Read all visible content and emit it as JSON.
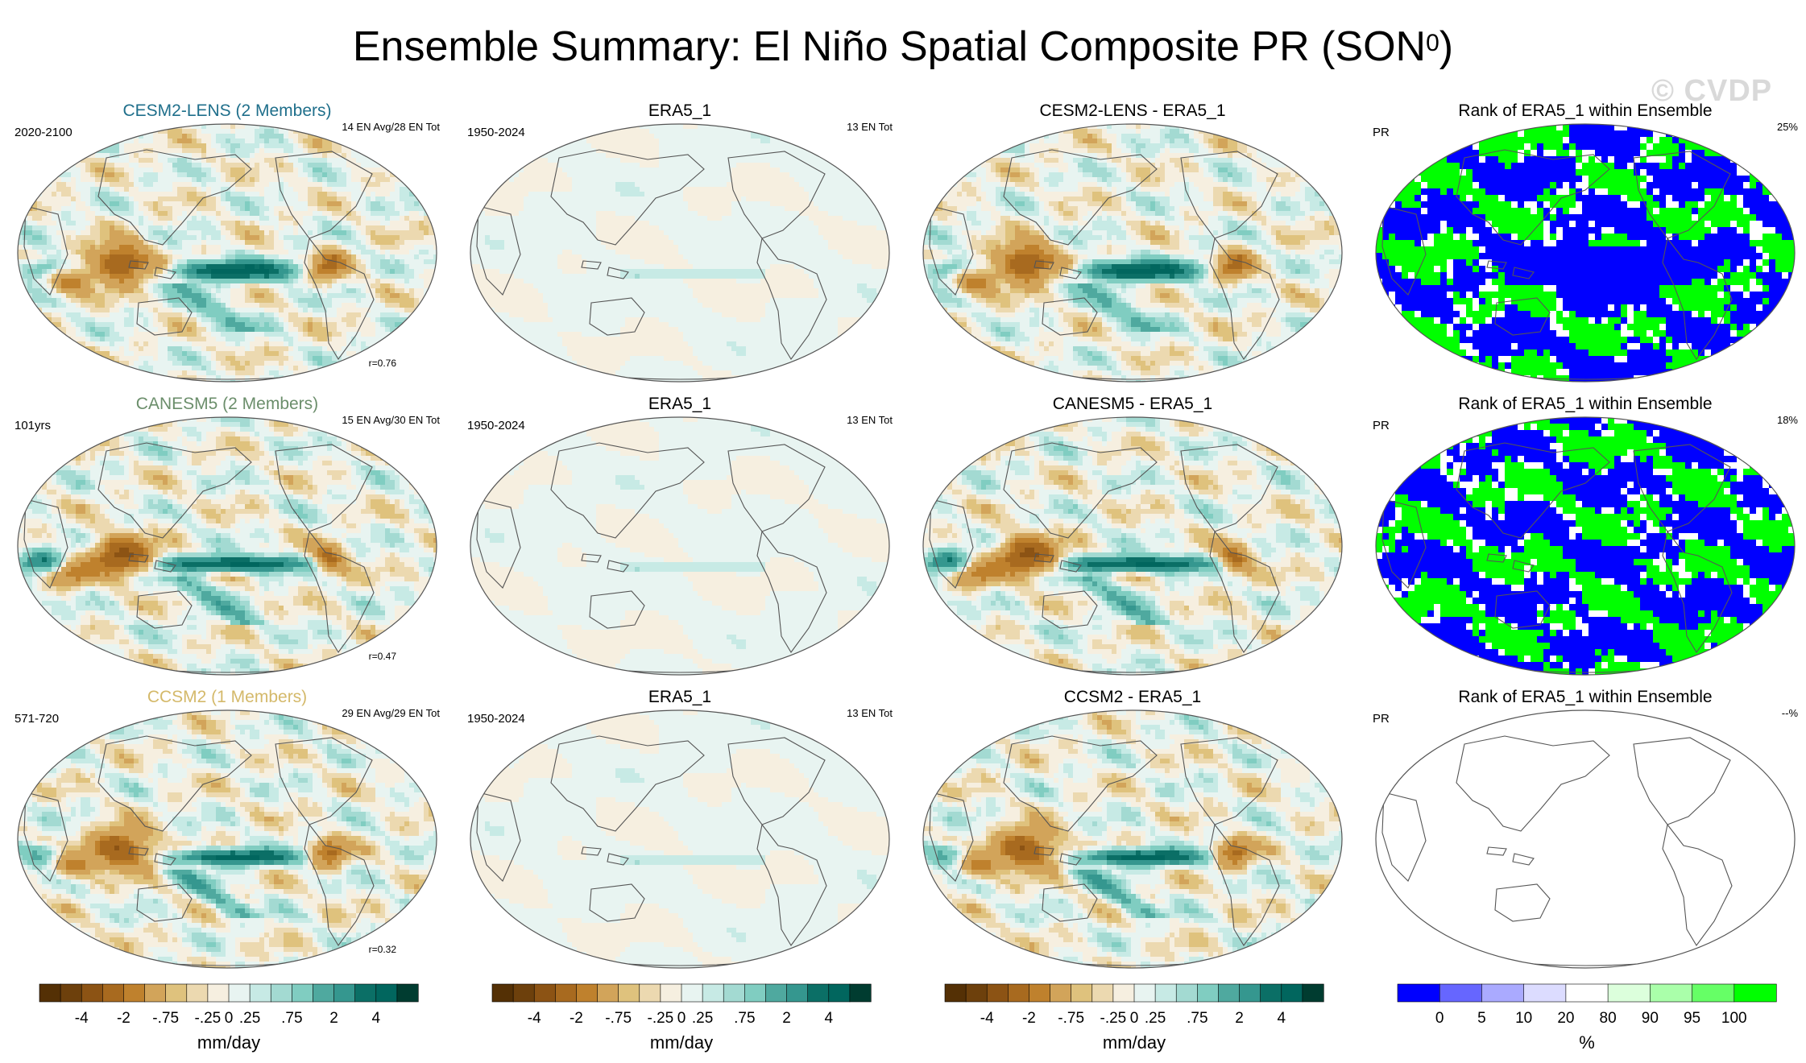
{
  "title": {
    "main": "Ensemble Summary: El Niño Spatial Composite PR (SON",
    "sup": "0",
    "tail": ")"
  },
  "watermark": "© CVDP",
  "colors": {
    "title_cesm": "#1f6f8b",
    "title_canesm": "#6b8e6b",
    "title_ccsm": "#d4b96a",
    "land_outline": "#555555",
    "rank_low": "#0000ff",
    "rank_high": "#00ff00"
  },
  "chart_data": {
    "type": "heatmap",
    "rows": [
      {
        "model": "CESM2-LENS (2 Members)",
        "model_color": "title_cesm",
        "panels": [
          {
            "title": "CESM2-LENS (2 Members)",
            "left": "2020-2100",
            "right": "14 EN Avg/28 EN Tot",
            "corr": "r=0.76",
            "kind": "model",
            "pattern": 1
          },
          {
            "title": "ERA5_1",
            "left": "1950-2024",
            "right": "13 EN Tot",
            "corr": "",
            "kind": "obs",
            "pattern": 0
          },
          {
            "title": "CESM2-LENS - ERA5_1",
            "left": "",
            "right": "",
            "corr": "",
            "kind": "diff",
            "pattern": 1
          },
          {
            "title": "Rank of ERA5_1 within Ensemble",
            "left": "PR",
            "right": "25%",
            "corr": "",
            "kind": "rank",
            "pattern": 1
          }
        ]
      },
      {
        "model": "CANESM5 (2 Members)",
        "model_color": "title_canesm",
        "panels": [
          {
            "title": "CANESM5 (2 Members)",
            "left": "101yrs",
            "right": "15 EN Avg/30 EN Tot",
            "corr": "r=0.47",
            "kind": "model",
            "pattern": 2
          },
          {
            "title": "ERA5_1",
            "left": "1950-2024",
            "right": "13 EN Tot",
            "corr": "",
            "kind": "obs",
            "pattern": 0
          },
          {
            "title": "CANESM5 - ERA5_1",
            "left": "",
            "right": "",
            "corr": "",
            "kind": "diff",
            "pattern": 2
          },
          {
            "title": "Rank of ERA5_1 within Ensemble",
            "left": "PR",
            "right": "18%",
            "corr": "",
            "kind": "rank",
            "pattern": 2
          }
        ]
      },
      {
        "model": "CCSM2 (1 Members)",
        "model_color": "title_ccsm",
        "panels": [
          {
            "title": "CCSM2 (1 Members)",
            "left": "571-720",
            "right": "29 EN Avg/29 EN Tot",
            "corr": "r=0.32",
            "kind": "model",
            "pattern": 3
          },
          {
            "title": "ERA5_1",
            "left": "1950-2024",
            "right": "13 EN Tot",
            "corr": "",
            "kind": "obs",
            "pattern": 0
          },
          {
            "title": "CCSM2 - ERA5_1",
            "left": "",
            "right": "",
            "corr": "",
            "kind": "diff",
            "pattern": 3
          },
          {
            "title": "Rank of ERA5_1 within Ensemble",
            "left": "PR",
            "right": "--%",
            "corr": "",
            "kind": "rank_empty",
            "pattern": 0
          }
        ]
      }
    ],
    "colorbar_pr": {
      "unit": "mm/day",
      "tick_labels": [
        "-4",
        "-2",
        "-.75",
        "-.25",
        "0",
        ".25",
        ".75",
        "2",
        "4"
      ],
      "levels": [
        -5,
        -4,
        -3,
        -2,
        -1.5,
        -0.75,
        -0.5,
        -0.25,
        0,
        0.25,
        0.5,
        0.75,
        1.5,
        2,
        3,
        4,
        5
      ],
      "colors": [
        "#543005",
        "#6d400c",
        "#8c5314",
        "#a86a1f",
        "#bf812d",
        "#d2a45a",
        "#dfc27d",
        "#ecd9b0",
        "#f6efe0",
        "#e8f4f1",
        "#c7eae5",
        "#a3dad2",
        "#80cdc1",
        "#4fa99f",
        "#35978f",
        "#0b6f66",
        "#01665e",
        "#003c30"
      ]
    },
    "colorbar_rank": {
      "unit": "%",
      "tick_labels": [
        "0",
        "5",
        "10",
        "20",
        "80",
        "90",
        "95",
        "100"
      ],
      "levels": [
        0,
        5,
        10,
        20,
        80,
        90,
        95,
        100
      ],
      "colors": [
        "#0000ff",
        "#6666ff",
        "#aaaaff",
        "#dcdcff",
        "#ffffff",
        "#dcffdc",
        "#aaffaa",
        "#66ff66",
        "#00ff00"
      ]
    }
  }
}
